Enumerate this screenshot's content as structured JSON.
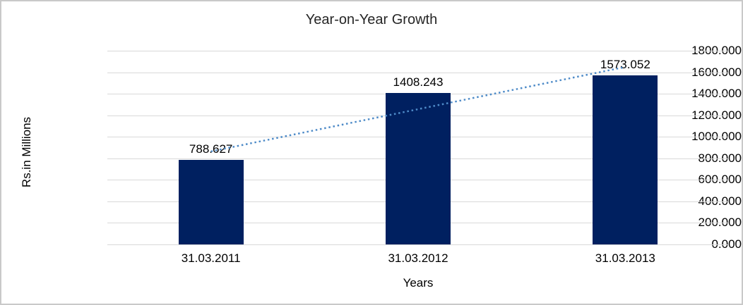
{
  "chart_data": {
    "type": "bar",
    "title": "Year-on-Year Growth",
    "categories": [
      "31.03.2011",
      "31.03.2012",
      "31.03.2013"
    ],
    "values": [
      788.627,
      1408.243,
      1573.052
    ],
    "data_labels": [
      "788.627",
      "1408.243",
      "1573.052"
    ],
    "xlabel": "Years",
    "ylabel": "Rs.in Millions",
    "ylim": [
      0,
      1800
    ],
    "ytick_step": 200,
    "ytick_format_decimals": 3,
    "grid": true,
    "legend": "none",
    "trendline": {
      "type": "linear",
      "style": "dotted",
      "span": "first-to-last-category"
    },
    "colors": {
      "bar": "#002060",
      "trendline": "#4e8bc8",
      "gridline": "#d9d9d9",
      "text": "#000000",
      "title": "#262626",
      "frame_border": "#c9c9c9",
      "background": "#ffffff"
    }
  }
}
